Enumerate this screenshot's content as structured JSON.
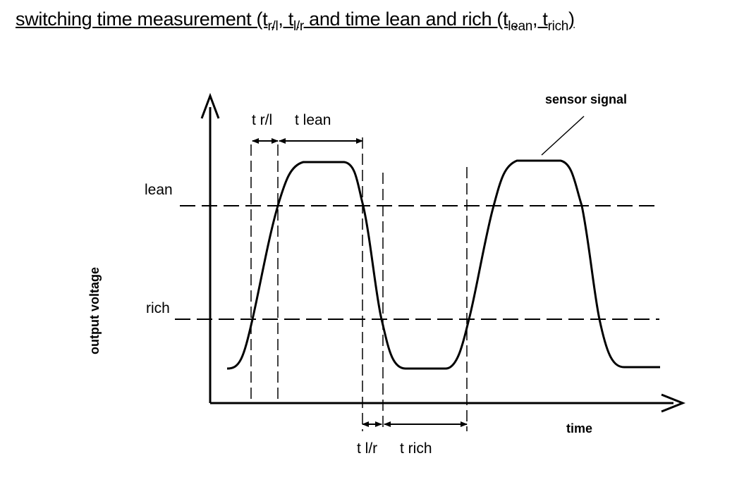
{
  "title": {
    "part1": "switching time measurement (t",
    "sub_rl": "r/l",
    "part2": ", t",
    "sub_lr": "l/r",
    "part3": " and time lean and rich (t",
    "sub_lean": "lean",
    "part4": ", t",
    "sub_rich": "rich",
    "part5": ")"
  },
  "labels": {
    "y_axis": "output voltage",
    "x_axis": "time",
    "lean_level": "lean",
    "rich_level": "rich",
    "sensor_signal": "sensor signal",
    "t_rl": "t r/l",
    "t_lean": "t lean",
    "t_lr": "t l/r",
    "t_rich": "t rich"
  }
}
